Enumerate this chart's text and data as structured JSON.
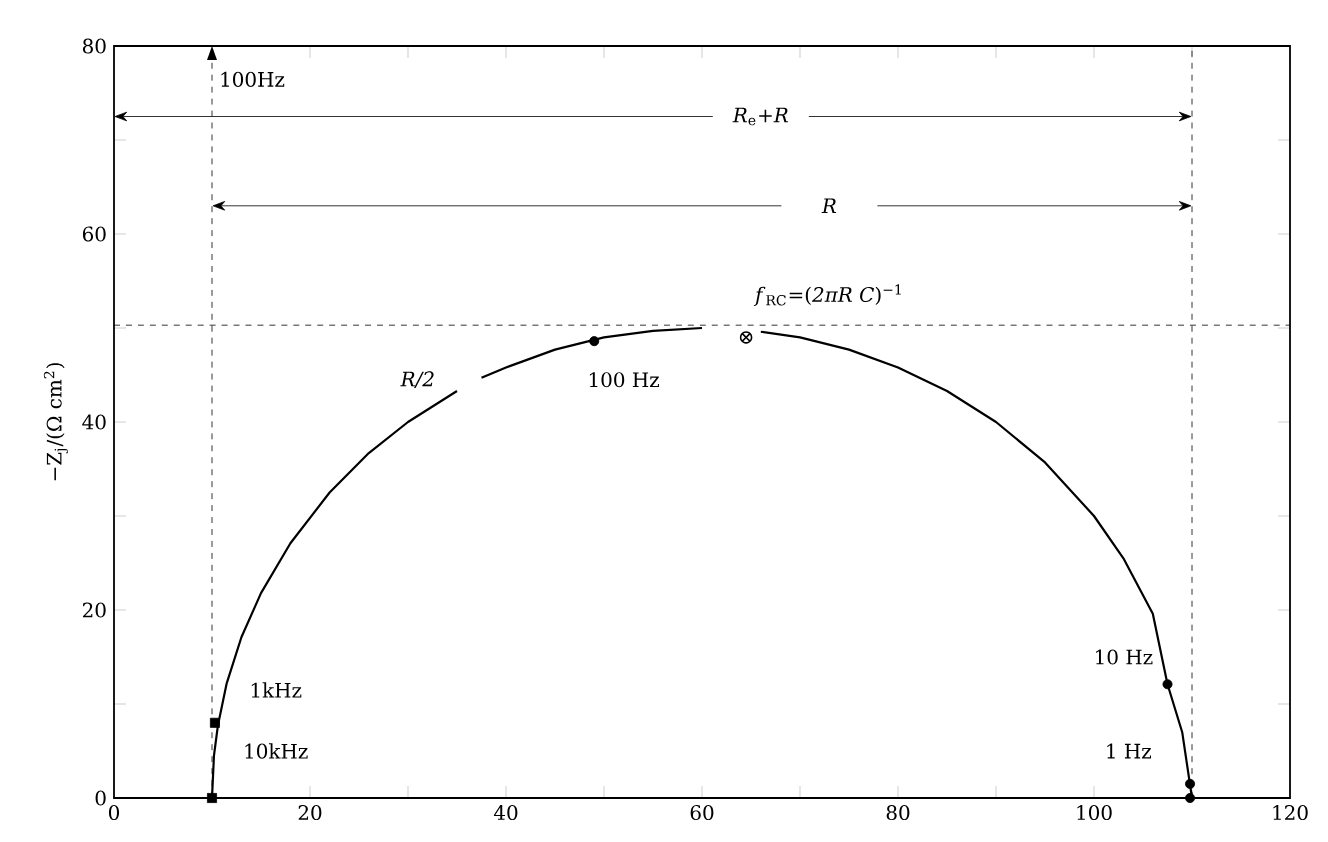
{
  "chart_data": {
    "type": "line",
    "ylabel": "−Z$_{j}$/(Ω cm$^{2}$)",
    "xlim": [
      0,
      120
    ],
    "ylim": [
      0,
      80
    ],
    "xticks": [
      0,
      {
        "value": 10,
        "label": null
      },
      20,
      {
        "value": 30,
        "label": null
      },
      40,
      {
        "value": 50,
        "label": null
      },
      60,
      {
        "value": 70,
        "label": null
      },
      80,
      {
        "value": 90,
        "label": null
      },
      100,
      {
        "value": 110,
        "label": null
      },
      120
    ],
    "yticks": [
      0,
      {
        "value": 10,
        "label": null
      },
      20,
      {
        "value": 30,
        "label": null
      },
      40,
      {
        "value": 50,
        "label": null
      },
      60,
      {
        "value": 70,
        "label": null
      },
      80
    ],
    "grid": false,
    "series": [
      {
        "color": "#000000",
        "marker": "none",
        "x": [
          10,
          10.2,
          10.6,
          11.5,
          13,
          15,
          18,
          22,
          26,
          30,
          35,
          36,
          37.5,
          40,
          45,
          50,
          55,
          60,
          63,
          66,
          70,
          75,
          80,
          85,
          90,
          95,
          100,
          103,
          106,
          107.5,
          109,
          110
        ],
        "values": [
          0,
          4.5,
          7.7,
          12.2,
          17.1,
          21.8,
          27.1,
          32.5,
          36.7,
          40,
          43.3,
          null,
          44.7,
          45.8,
          47.7,
          49,
          49.7,
          50,
          null,
          49.6,
          49,
          47.7,
          45.8,
          43.3,
          40,
          35.7,
          30,
          25.5,
          19.6,
          12.1,
          7,
          0
        ]
      },
      {
        "type": "scatter",
        "color": "#000000",
        "marker": "square",
        "x": [
          10,
          10.3
        ],
        "values": [
          0,
          8
        ]
      },
      {
        "type": "scatter",
        "color": "#000000",
        "marker": "circle",
        "x": [
          49,
          107.5,
          109.8,
          109.8
        ],
        "values": [
          48.6,
          12.1,
          1.5,
          0
        ]
      }
    ],
    "ref_lines": [
      {
        "axis": "y",
        "value": 50.3,
        "line_style": "dashed"
      },
      {
        "axis": "x",
        "value": 10,
        "label": "100Hz",
        "line_style": "dashed"
      },
      {
        "axis": "x",
        "value": 110,
        "line_style": "dashed"
      }
    ],
    "annotations": [
      "*R*$_{e}$+*R*",
      "R",
      "*f*$_{RC}$=(*2πR C*)$^{−1}$",
      "R/2",
      "100 Hz",
      "1kHz",
      "10kHz",
      "10 Hz",
      "1 Hz",
      "⊗"
    ]
  }
}
